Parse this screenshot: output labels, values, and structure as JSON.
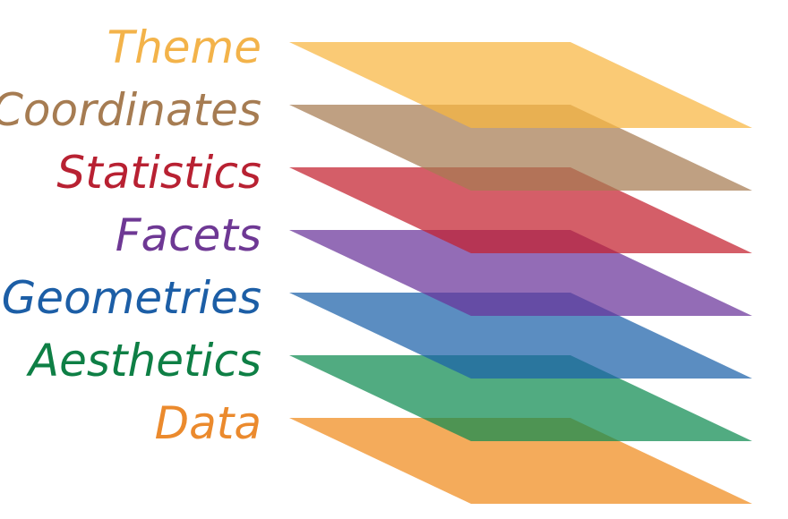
{
  "diagram": {
    "layers": [
      {
        "key": "theme",
        "label": "Theme",
        "plane_color": "#F8B640",
        "label_color": "#F3B34A"
      },
      {
        "key": "coordinates",
        "label": "Coordinates",
        "plane_color": "#A67C52",
        "label_color": "#A67C52"
      },
      {
        "key": "statistics",
        "label": "Statistics",
        "plane_color": "#C3202E",
        "label_color": "#B82132"
      },
      {
        "key": "facets",
        "label": "Facets",
        "plane_color": "#6A339A",
        "label_color": "#6E3894"
      },
      {
        "key": "geometries",
        "label": "Geometries",
        "plane_color": "#1C61A9",
        "label_color": "#1C5EA6"
      },
      {
        "key": "aesthetics",
        "label": "Aesthetics",
        "plane_color": "#0E8A51",
        "label_color": "#0E7F45"
      },
      {
        "key": "data",
        "label": "Data",
        "plane_color": "#F08A1C",
        "label_color": "#EB8A2D"
      }
    ]
  }
}
